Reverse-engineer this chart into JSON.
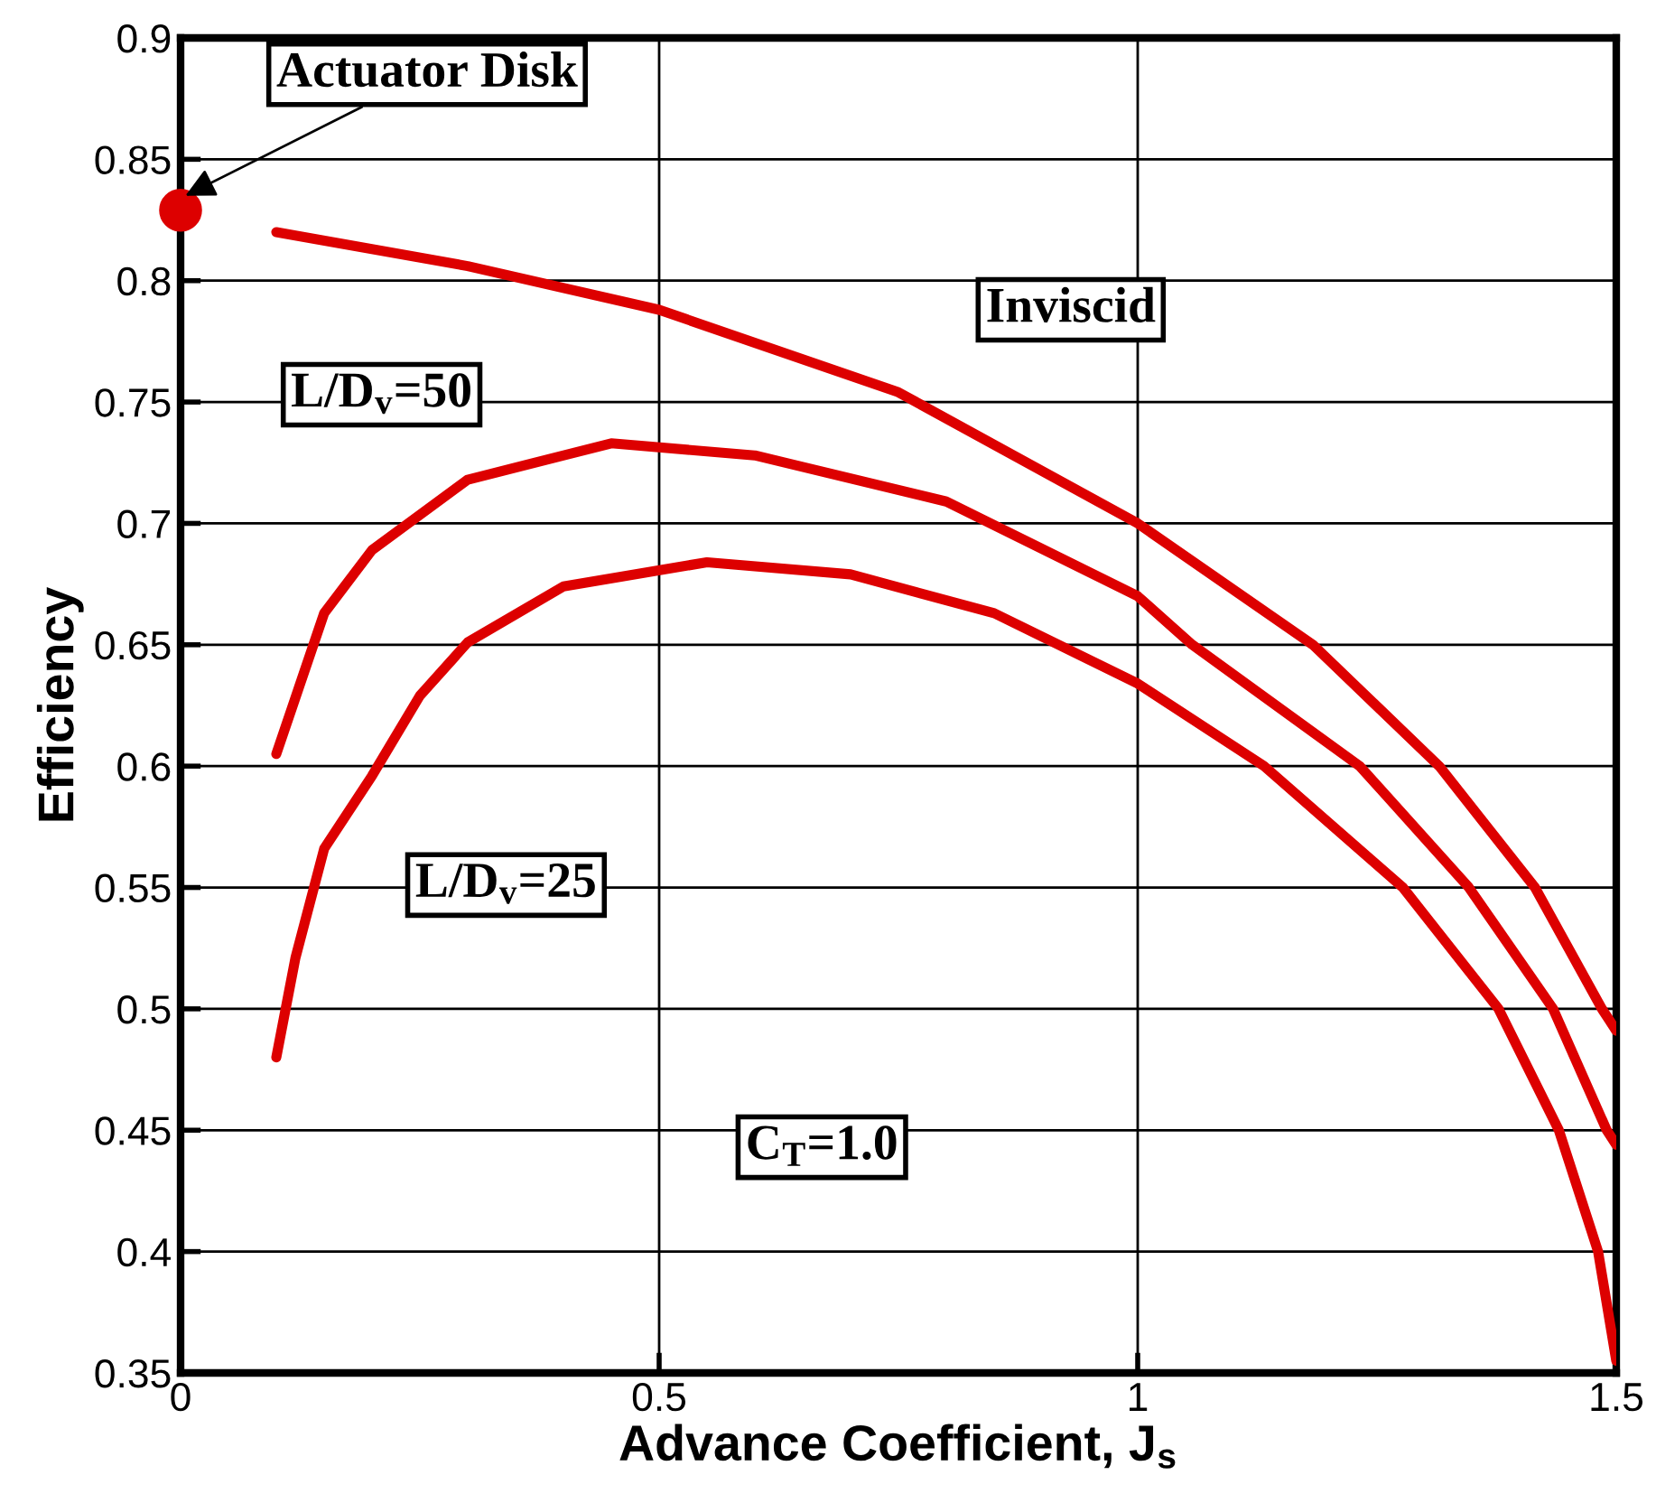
{
  "chart_data": {
    "type": "line",
    "xlabel": "Advance Coefficient, J$_{s}$",
    "ylabel": "Efficiency",
    "xlim": [
      0,
      1.5
    ],
    "xticks": [
      0,
      0.5,
      1,
      1.5
    ],
    "ylim": [
      0.35,
      0.9
    ],
    "yticks": [
      0.35,
      0.4,
      0.45,
      0.5,
      0.55,
      0.6,
      0.65,
      0.7,
      0.75,
      0.8,
      0.85,
      0.9
    ],
    "grid": true,
    "legend": false,
    "marker": "none",
    "line_style": "solid",
    "series": [
      {
        "name": "Inviscid",
        "color": "#dd0000",
        "x": [
          0.1,
          0.3,
          0.5,
          0.75,
          1.0,
          1.183,
          1.315,
          1.415,
          1.485,
          1.5
        ],
        "values": [
          0.82,
          0.806,
          0.788,
          0.754,
          0.7,
          0.65,
          0.6,
          0.55,
          0.5,
          0.491
        ]
      },
      {
        "name": "L/D$_{v}$=50",
        "color": "#dd0000",
        "x": [
          0.1,
          0.15,
          0.2,
          0.3,
          0.45,
          0.6,
          0.8,
          1.0,
          1.057,
          1.232,
          1.346,
          1.434,
          1.49,
          1.5
        ],
        "values": [
          0.605,
          0.663,
          0.689,
          0.718,
          0.733,
          0.728,
          0.709,
          0.67,
          0.65,
          0.6,
          0.55,
          0.5,
          0.45,
          0.444
        ]
      },
      {
        "name": "L/D$_{v}$=25",
        "color": "#dd0000",
        "x": [
          0.1,
          0.12,
          0.15,
          0.2,
          0.25,
          0.3,
          0.4,
          0.55,
          0.7,
          0.85,
          1.0,
          1.132,
          1.277,
          1.377,
          1.44,
          1.481,
          1.5
        ],
        "values": [
          0.48,
          0.521,
          0.566,
          0.596,
          0.629,
          0.651,
          0.674,
          0.684,
          0.679,
          0.663,
          0.634,
          0.6,
          0.55,
          0.5,
          0.45,
          0.4,
          0.355
        ]
      },
      {
        "name": "Actuator Disk",
        "type": "scatter",
        "marker": "circle",
        "color": "#dd0000",
        "x": [
          0
        ],
        "values": [
          0.829
        ]
      }
    ],
    "annotations": [
      "C$_{T}$=1.0"
    ]
  }
}
